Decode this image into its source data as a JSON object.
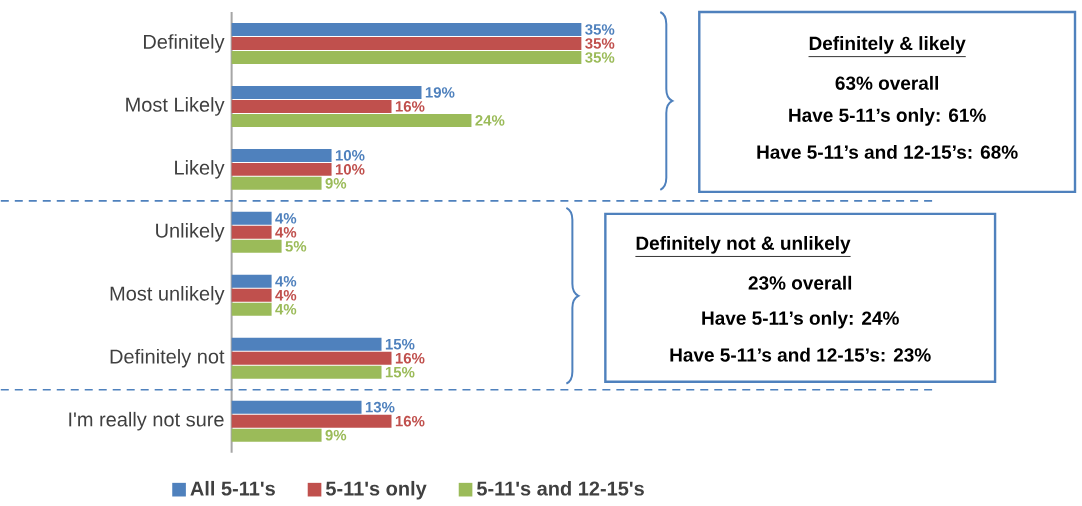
{
  "chart_data": {
    "type": "bar",
    "orientation": "horizontal",
    "categories": [
      "Definitely",
      "Most Likely",
      "Likely",
      "Unlikely",
      "Most unlikely",
      "Definitely not",
      "I'm really not sure"
    ],
    "series": [
      {
        "name": "All 5-11's",
        "color": "#4f81bd",
        "values": [
          35,
          19,
          10,
          4,
          4,
          15,
          13
        ],
        "value_labels": [
          "35%",
          "19%",
          "10%",
          "4%",
          "4%",
          "15%",
          "13%"
        ]
      },
      {
        "name": "5-11's only",
        "color": "#c0504d",
        "values": [
          35,
          16,
          10,
          4,
          4,
          16,
          16
        ],
        "value_labels": [
          "35%",
          "16%",
          "10%",
          "4%",
          "4%",
          "16%",
          "16%"
        ]
      },
      {
        "name": "5-11's and 12-15's",
        "color": "#9bbb59",
        "values": [
          35,
          24,
          9,
          5,
          4,
          15,
          9
        ],
        "value_labels": [
          "35%",
          "24%",
          "9%",
          "5%",
          "4%",
          "15%",
          "9%"
        ]
      }
    ],
    "annotations": [
      "Definitely & likely",
      "63% overall",
      "Have 5-11’s only: 61%",
      "Have 5-11’s and 12-15’s: 68%",
      "Definitely not & unlikely",
      "23% overall",
      "Have 5-11’s only: 24%",
      "Have 5-11’s and 12-15’s: 23%"
    ],
    "legend": "bottom"
  }
}
